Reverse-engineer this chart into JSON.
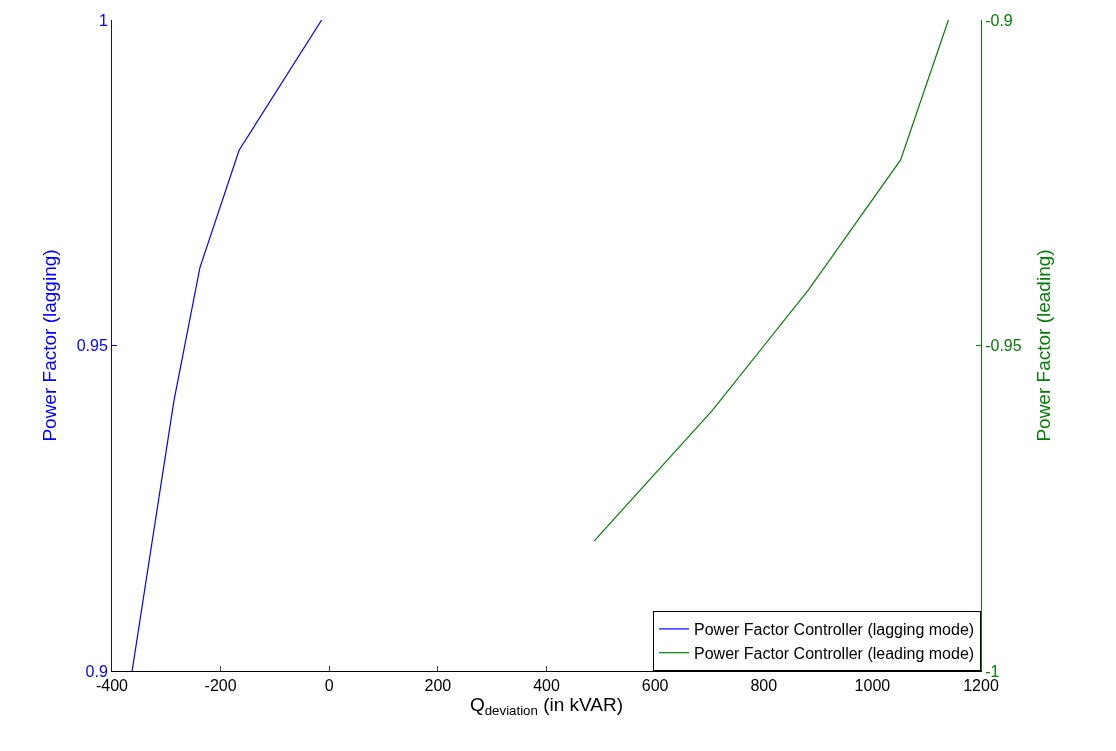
{
  "chart_data": {
    "type": "line",
    "xlabel": "Q$_{deviation}$ (in kVAR)",
    "ylabel": "Power Factor (lagging)",
    "y2label": "Power Factor (leading)",
    "xlim": [
      -400,
      1200
    ],
    "xticks": [
      -400,
      -200,
      0,
      200,
      400,
      600,
      800,
      1000,
      1200
    ],
    "ylim": [
      0.9,
      1
    ],
    "yticks": [
      0.9,
      0.95,
      1
    ],
    "y2lim": [
      -1,
      -0.9
    ],
    "y2ticks": [
      -1,
      -0.95,
      -0.9
    ],
    "legend": "bottom right",
    "marker": "none",
    "line_style": "solid",
    "series": [
      {
        "name": "Power Factor Controller (lagging mode)",
        "color": "#0000ff",
        "x": [
          -363,
          -286,
          -238,
          -166,
          -14
        ],
        "values": [
          0.9,
          0.9415,
          0.962,
          0.98,
          1
        ]
      },
      {
        "name": "Power Factor Controller (leading mode)",
        "color": "#008000",
        "axis": "y2",
        "x": [
          488,
          705,
          882,
          1052,
          1140
        ],
        "values": [
          -0.98,
          -0.96,
          -0.9415,
          -0.9215,
          -0.9
        ]
      }
    ]
  }
}
